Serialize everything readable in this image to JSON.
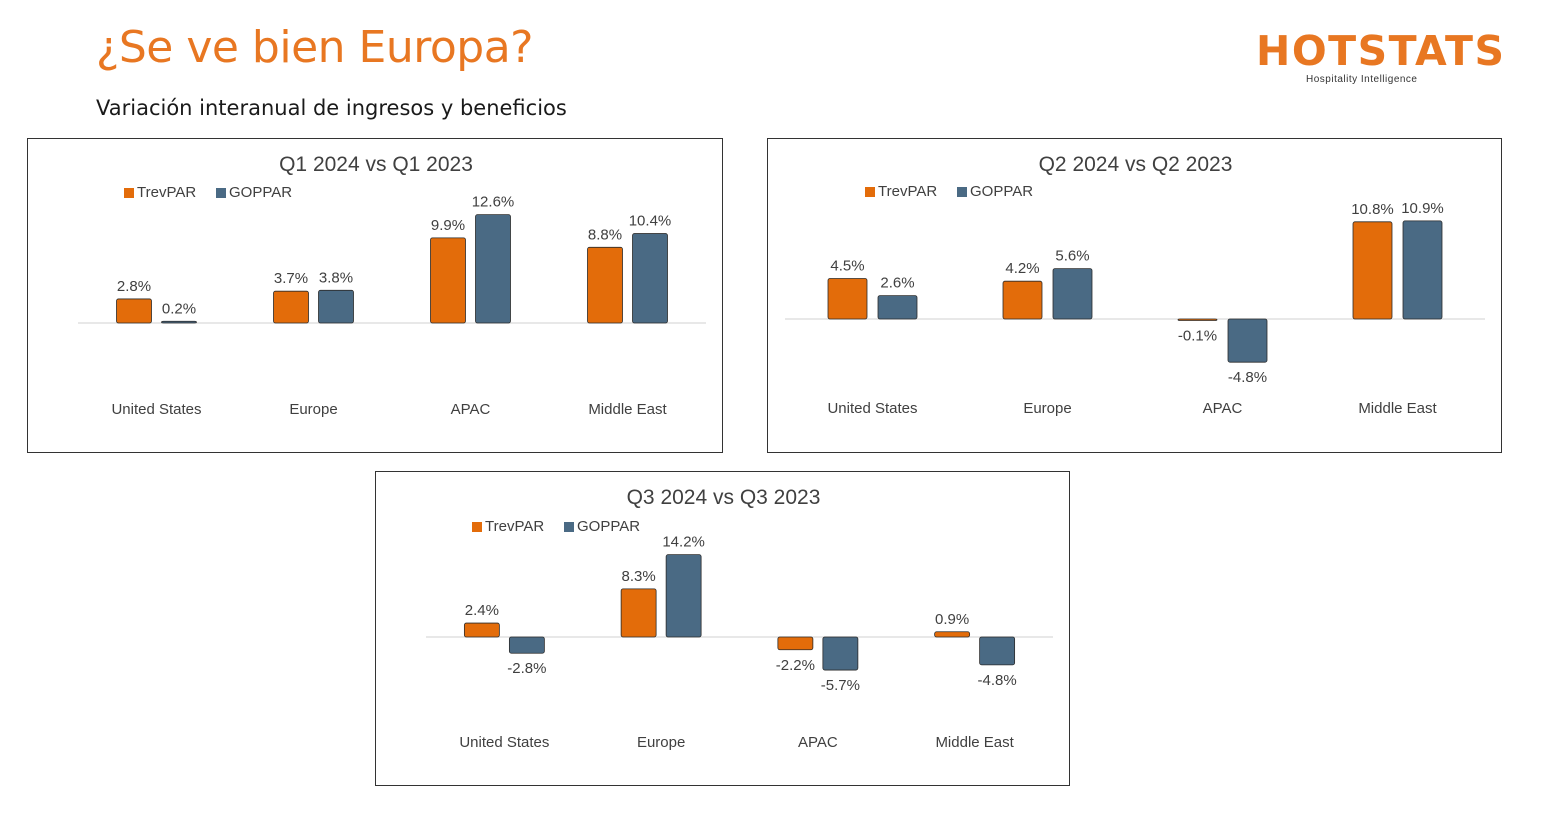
{
  "slide": {
    "title": "¿Se ve bien Europa?",
    "subtitle": "Variación interanual de ingresos y beneficios"
  },
  "logo": {
    "word": "HOTSTATS",
    "tagline": "Hospitality Intelligence",
    "color": "#e87722"
  },
  "colors": {
    "TrevPAR": "#e36c0a",
    "GOPPAR": "#4a6a84"
  },
  "chart_data": [
    {
      "type": "bar",
      "title": "Q1 2024 vs Q1 2023",
      "categories": [
        "United States",
        "Europe",
        "APAC",
        "Middle East"
      ],
      "series": [
        {
          "name": "TrevPAR",
          "values": [
            2.8,
            3.7,
            9.9,
            8.8
          ],
          "labels": [
            "2.8%",
            "3.7%",
            "9.9%",
            "8.8%"
          ]
        },
        {
          "name": "GOPPAR",
          "values": [
            0.2,
            3.8,
            12.6,
            10.4
          ],
          "labels": [
            "0.2%",
            "3.8%",
            "12.6%",
            "10.4%"
          ]
        }
      ],
      "legend_position": "top-left",
      "grid": false,
      "unit": "%"
    },
    {
      "type": "bar",
      "title": "Q2 2024 vs Q2 2023",
      "categories": [
        "United States",
        "Europe",
        "APAC",
        "Middle East"
      ],
      "series": [
        {
          "name": "TrevPAR",
          "values": [
            4.5,
            4.2,
            -0.1,
            10.8
          ],
          "labels": [
            "4.5%",
            "4.2%",
            "-0.1%",
            "10.8%"
          ]
        },
        {
          "name": "GOPPAR",
          "values": [
            2.6,
            5.6,
            -4.8,
            10.9
          ],
          "labels": [
            "2.6%",
            "5.6%",
            "-4.8%",
            "10.9%"
          ]
        }
      ],
      "legend_position": "top-left",
      "grid": false,
      "unit": "%"
    },
    {
      "type": "bar",
      "title": "Q3 2024 vs Q3 2023",
      "categories": [
        "United States",
        "Europe",
        "APAC",
        "Middle East"
      ],
      "series": [
        {
          "name": "TrevPAR",
          "values": [
            2.4,
            8.3,
            -2.2,
            0.9
          ],
          "labels": [
            "2.4%",
            "8.3%",
            "-2.2%",
            "0.9%"
          ]
        },
        {
          "name": "GOPPAR",
          "values": [
            -2.8,
            14.2,
            -5.7,
            -4.8
          ],
          "labels": [
            "-2.8%",
            "14.2%",
            "-5.7%",
            "-4.8%"
          ]
        }
      ],
      "legend_position": "top-left",
      "grid": false,
      "unit": "%"
    }
  ]
}
